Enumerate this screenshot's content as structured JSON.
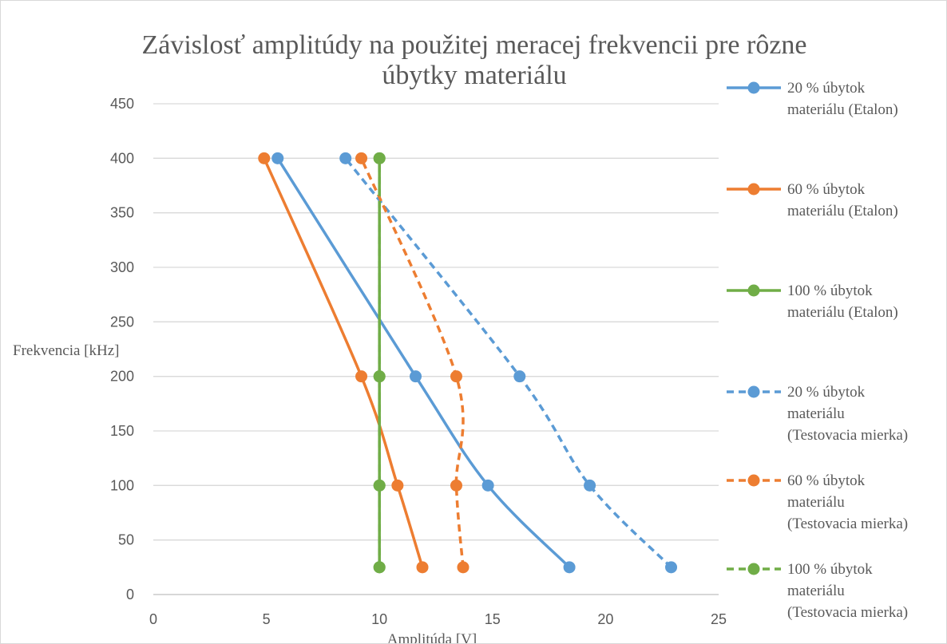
{
  "chart_data": {
    "type": "scatter",
    "title": "Závislosť amplitúdy na použitej meracej frekvencii pre rôzne úbytky materiálu",
    "title_lines": [
      "Závislosť amplitúdy na použitej meracej frekvencii pre rôzne",
      "úbytky materiálu"
    ],
    "xlabel": "Amplitúda [V]",
    "ylabel": "Frekvencia [kHz]",
    "xlim": [
      0,
      25
    ],
    "ylim": [
      0,
      450
    ],
    "xticks": [
      0,
      5,
      10,
      15,
      20,
      25
    ],
    "yticks": [
      0,
      50,
      100,
      150,
      200,
      250,
      300,
      350,
      400,
      450
    ],
    "grid": "horizontal",
    "legend_position": "right",
    "series": [
      {
        "name": "20 % úbytok materiálu (Etalon)",
        "legend_lines": [
          "20 % úbytok",
          "materiálu (Etalon)"
        ],
        "color": "#5b9bd5",
        "dash": "solid",
        "points": [
          {
            "x": 18.4,
            "y": 25
          },
          {
            "x": 14.8,
            "y": 100
          },
          {
            "x": 11.6,
            "y": 200
          },
          {
            "x": 5.5,
            "y": 400
          }
        ]
      },
      {
        "name": "60 % úbytok materiálu (Etalon)",
        "legend_lines": [
          "60 % úbytok",
          "materiálu (Etalon)"
        ],
        "color": "#ed7d31",
        "dash": "solid",
        "points": [
          {
            "x": 11.9,
            "y": 25
          },
          {
            "x": 10.8,
            "y": 100
          },
          {
            "x": 9.2,
            "y": 200
          },
          {
            "x": 4.9,
            "y": 400
          }
        ]
      },
      {
        "name": "100 % úbytok materiálu (Etalon)",
        "legend_lines": [
          "100 % úbytok",
          "materiálu (Etalon)"
        ],
        "color": "#70ad47",
        "dash": "solid",
        "points": [
          {
            "x": 10.0,
            "y": 25
          },
          {
            "x": 10.0,
            "y": 100
          },
          {
            "x": 10.0,
            "y": 200
          },
          {
            "x": 10.0,
            "y": 400
          }
        ]
      },
      {
        "name": "20 % úbytok materiálu (Testovacia mierka)",
        "legend_lines": [
          "20 % úbytok",
          "materiálu",
          "(Testovacia mierka)"
        ],
        "color": "#5b9bd5",
        "dash": "dashed",
        "points": [
          {
            "x": 22.9,
            "y": 25
          },
          {
            "x": 19.3,
            "y": 100
          },
          {
            "x": 16.2,
            "y": 200
          },
          {
            "x": 8.5,
            "y": 400
          }
        ]
      },
      {
        "name": "60 % úbytok materiálu (Testovacia mierka)",
        "legend_lines": [
          "60 % úbytok",
          "materiálu",
          "(Testovacia mierka)"
        ],
        "color": "#ed7d31",
        "dash": "dashed",
        "points": [
          {
            "x": 13.7,
            "y": 25
          },
          {
            "x": 13.4,
            "y": 100
          },
          {
            "x": 13.4,
            "y": 200
          },
          {
            "x": 9.2,
            "y": 400
          }
        ]
      },
      {
        "name": "100 % úbytok materiálu (Testovacia mierka)",
        "legend_lines": [
          "100 % úbytok",
          "materiálu",
          "(Testovacia mierka)"
        ],
        "color": "#70ad47",
        "dash": "dashed",
        "points": [
          {
            "x": 10.0,
            "y": 25
          },
          {
            "x": 10.0,
            "y": 100
          },
          {
            "x": 10.0,
            "y": 200
          },
          {
            "x": 10.0,
            "y": 400
          }
        ]
      }
    ]
  }
}
